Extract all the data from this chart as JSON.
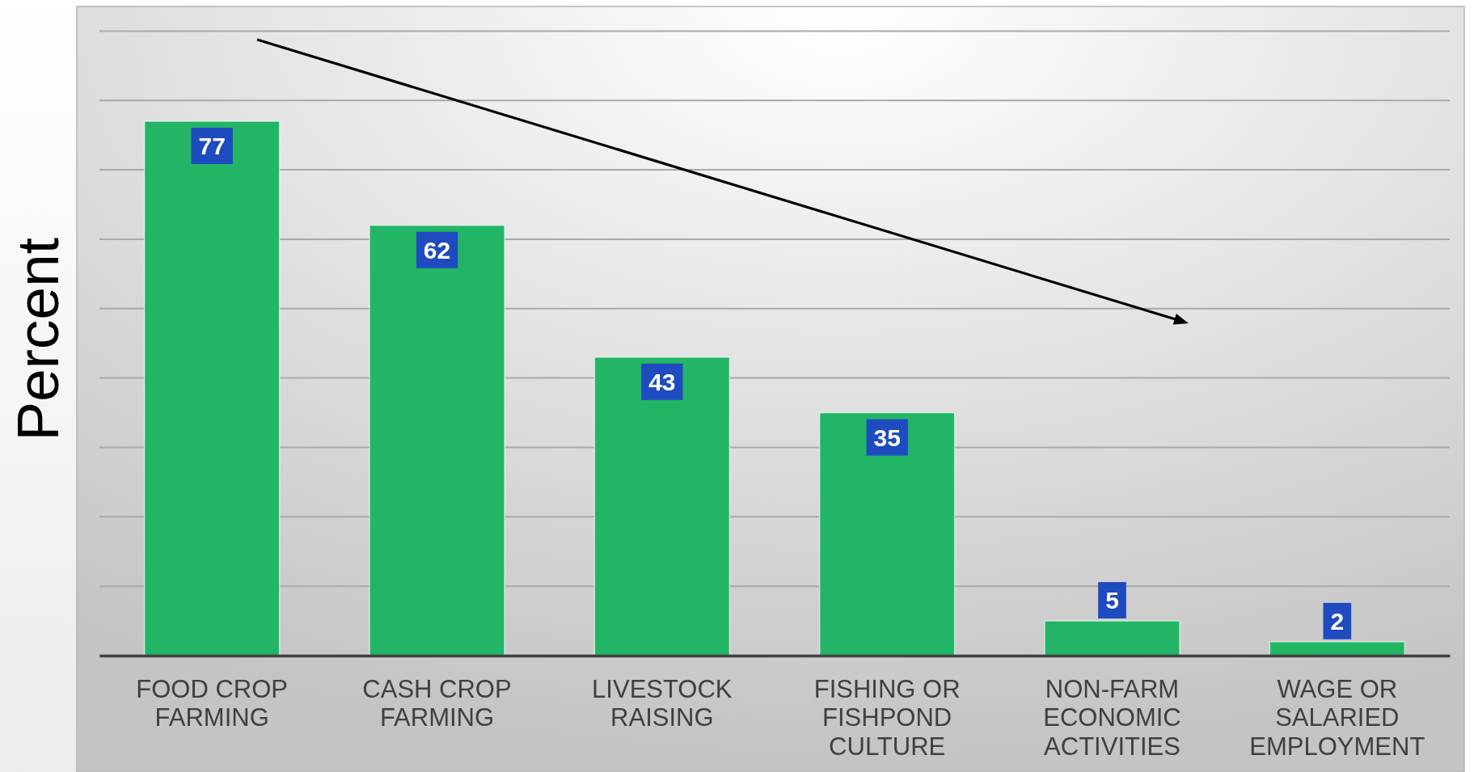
{
  "chart_data": {
    "type": "bar",
    "ylabel": "Percent",
    "categories": [
      "FOOD CROP FARMING",
      "CASH CROP FARMING",
      "LIVESTOCK RAISING",
      "FISHING OR FISHPOND CULTURE",
      "NON-FARM ECONOMIC ACTIVITIES",
      "WAGE OR SALARIED EMPLOYMENT"
    ],
    "values": [
      77,
      62,
      43,
      35,
      5,
      2
    ],
    "color": "#22b566",
    "ylim": [
      0,
      90
    ],
    "yticks": [
      {
        "value": 0,
        "label": null
      },
      {
        "value": 10,
        "label": null
      },
      {
        "value": 20,
        "label": null
      },
      {
        "value": 30,
        "label": null
      },
      {
        "value": 40,
        "label": null
      },
      {
        "value": 50,
        "label": null
      },
      {
        "value": 60,
        "label": null
      },
      {
        "value": 70,
        "label": null
      },
      {
        "value": 80,
        "label": null
      },
      {
        "value": 90,
        "label": null
      }
    ],
    "grid": "y",
    "tick_labels": "x",
    "data_labels": true
  }
}
